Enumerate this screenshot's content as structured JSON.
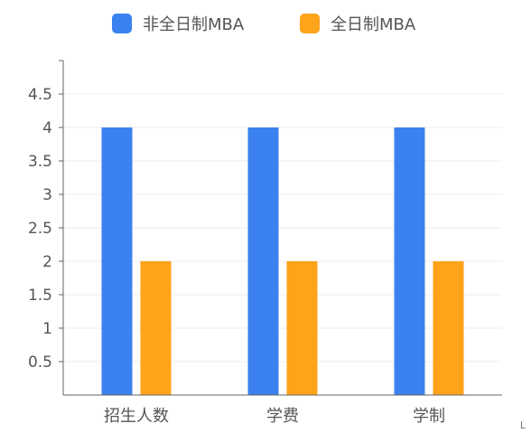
{
  "chart_data": {
    "type": "bar",
    "title": "",
    "xlabel": "",
    "ylabel": "",
    "categories": [
      "招生人数",
      "学费",
      "学制"
    ],
    "series": [
      {
        "name": "非全日制MBA",
        "color": "#3b82f0",
        "values": [
          4,
          4,
          4
        ]
      },
      {
        "name": "全日制MBA",
        "color": "#ffa31a",
        "values": [
          2,
          2,
          2
        ]
      }
    ],
    "ylim": [
      0,
      5
    ],
    "yticks": [
      0.5,
      1,
      1.5,
      2,
      2.5,
      3,
      3.5,
      4,
      4.5
    ],
    "grid": true,
    "legend_position": "top"
  },
  "corner_mark": "L"
}
